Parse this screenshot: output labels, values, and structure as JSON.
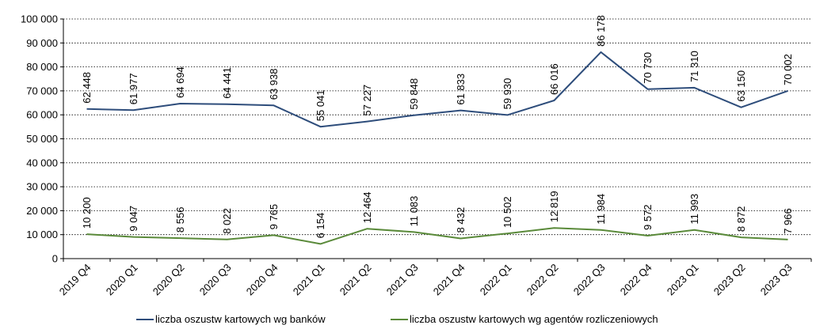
{
  "chart_data": {
    "type": "line",
    "categories": [
      "2019 Q4",
      "2020 Q1",
      "2020 Q2",
      "2020 Q3",
      "2020 Q4",
      "2021 Q1",
      "2021 Q2",
      "2021 Q3",
      "2021 Q4",
      "2022 Q1",
      "2022 Q2",
      "2022 Q3",
      "2022 Q4",
      "2023 Q1",
      "2023 Q2",
      "2023 Q3"
    ],
    "series": [
      {
        "name": "liczba oszustw kartowych wg banków",
        "color": "#2e4d7b",
        "values": [
          62448,
          61977,
          64694,
          64441,
          63938,
          55041,
          57227,
          59848,
          61833,
          59930,
          66016,
          86178,
          70730,
          71310,
          63150,
          70002
        ],
        "labels": [
          "62 448",
          "61 977",
          "64 694",
          "64 441",
          "63 938",
          "55 041",
          "57 227",
          "59 848",
          "61 833",
          "59 930",
          "66 016",
          "86 178",
          "70 730",
          "71 310",
          "63 150",
          "70 002"
        ]
      },
      {
        "name": "liczba oszustw kartowych wg agentów rozliczeniowych",
        "color": "#5a8a3a",
        "values": [
          10200,
          9047,
          8556,
          8022,
          9765,
          6154,
          12464,
          11083,
          8432,
          10502,
          12819,
          11984,
          9572,
          11993,
          8872,
          7966
        ],
        "labels": [
          "10 200",
          "9 047",
          "8 556",
          "8 022",
          "9 765",
          "6 154",
          "12 464",
          "11 083",
          "8 432",
          "10 502",
          "12 819",
          "11 984",
          "9 572",
          "11 993",
          "8 872",
          "7 966"
        ]
      }
    ],
    "ylim": [
      0,
      100000
    ],
    "yticks": [
      0,
      10000,
      20000,
      30000,
      40000,
      50000,
      60000,
      70000,
      80000,
      90000,
      100000
    ],
    "ytick_labels": [
      "0",
      "10 000",
      "20 000",
      "30 000",
      "40 000",
      "50 000",
      "60 000",
      "70 000",
      "80 000",
      "90 000",
      "100 000"
    ],
    "grid": true,
    "legend_position": "bottom"
  }
}
